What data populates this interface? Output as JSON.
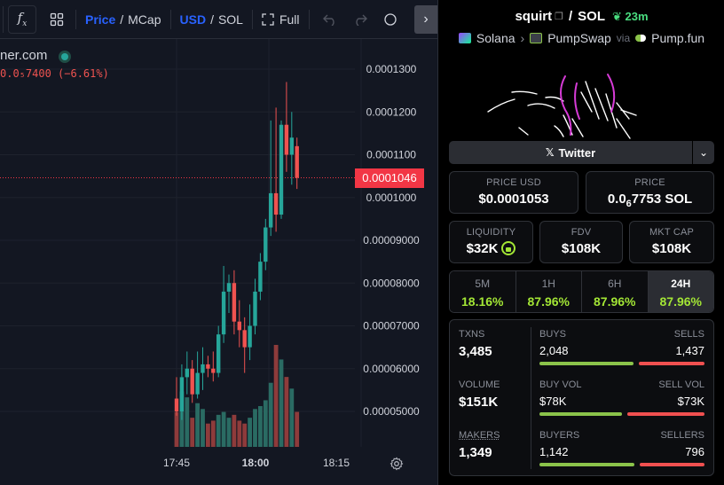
{
  "toolbar": {
    "price_label": "Price",
    "mcap_label": "MCap",
    "usd_label": "USD",
    "sol_label": "SOL",
    "full_label": "Full",
    "slash": "/"
  },
  "chart": {
    "pair_partial": "ner.com",
    "ohlc_partial": "0.0₅7400 (−6.61%)",
    "current_price": "0.0001046",
    "y_ticks": [
      "0.0001300",
      "0.0001200",
      "0.0001100",
      "0.0001000",
      "0.00009000",
      "0.00008000",
      "0.00007000",
      "0.00006000",
      "0.00005000"
    ],
    "x_ticks": [
      "17:45",
      "18:00",
      "18:15"
    ],
    "colors": {
      "up": "#26a69a",
      "down": "#ef5350",
      "tag": "#f23645"
    }
  },
  "chart_data": {
    "type": "candlestick",
    "ylim": [
      4.5e-05,
      0.000133
    ],
    "candles": [
      [
        5.3e-05,
        5.8e-05,
        4.9e-05,
        5e-05
      ],
      [
        5e-05,
        6.1e-05,
        4.8e-05,
        5.8e-05
      ],
      [
        5.8e-05,
        6.4e-05,
        5.4e-05,
        6e-05
      ],
      [
        6e-05,
        6.2e-05,
        5.2e-05,
        5.4e-05
      ],
      [
        5.4e-05,
        6.4e-05,
        5.3e-05,
        5.9e-05
      ],
      [
        5.9e-05,
        6.5e-05,
        5.5e-05,
        6.1e-05
      ],
      [
        6.1e-05,
        6.3e-05,
        5.8e-05,
        6e-05
      ],
      [
        6e-05,
        6.4e-05,
        5.7e-05,
        5.9e-05
      ],
      [
        5.9e-05,
        7e-05,
        5.8e-05,
        6.8e-05
      ],
      [
        6.8e-05,
        8.4e-05,
        6.6e-05,
        7.8e-05
      ],
      [
        7.8e-05,
        8.2e-05,
        7.3e-05,
        8e-05
      ],
      [
        8e-05,
        8.3e-05,
        6.8e-05,
        7.1e-05
      ],
      [
        7.1e-05,
        7.6e-05,
        6.5e-05,
        6.9e-05
      ],
      [
        6.9e-05,
        7.2e-05,
        5.9e-05,
        6.5e-05
      ],
      [
        6.5e-05,
        7.5e-05,
        6.2e-05,
        7e-05
      ],
      [
        7e-05,
        8.1e-05,
        6.8e-05,
        7.8e-05
      ],
      [
        7.8e-05,
        8.7e-05,
        7.6e-05,
        8.5e-05
      ],
      [
        8.5e-05,
        9.5e-05,
        8.3e-05,
        9.3e-05
      ],
      [
        9.3e-05,
        0.000118,
        9.1e-05,
        0.000101
      ],
      [
        0.000101,
        0.000121,
        9.2e-05,
        9.6e-05
      ],
      [
        9.6e-05,
        0.000118,
        9.5e-05,
        0.000117
      ],
      [
        0.000117,
        0.000127,
        0.000106,
        0.00011
      ],
      [
        0.00011,
        0.00012,
        0.000103,
        0.000114
      ],
      [
        0.000112,
        0.000114,
        0.000102,
        0.0001046
      ]
    ],
    "volumes": [
      12,
      19,
      17,
      10,
      15,
      13,
      8,
      9,
      11,
      12,
      10,
      11,
      9,
      8,
      10,
      13,
      14,
      16,
      22,
      35,
      30,
      24,
      20,
      12
    ],
    "volume_up": [
      false,
      true,
      true,
      false,
      true,
      true,
      false,
      false,
      true,
      true,
      true,
      false,
      false,
      false,
      true,
      true,
      true,
      true,
      true,
      false,
      true,
      false,
      true,
      false
    ]
  },
  "panel": {
    "token": "squirt",
    "quote": "SOL",
    "slash": "/",
    "age": "23m",
    "chain": "Solana",
    "dex": "PumpSwap",
    "via": "via",
    "launchpad": "Pump.fun",
    "twitter_label": "Twitter",
    "price_usd_label": "PRICE USD",
    "price_usd_value": "$0.0001053",
    "price_label": "PRICE",
    "price_value_prefix": "0.0",
    "price_value_sub": "6",
    "price_value_suffix": "7753 SOL",
    "liquidity_label": "LIQUIDITY",
    "liquidity_value": "$32K",
    "fdv_label": "FDV",
    "fdv_value": "$108K",
    "mcap_label": "MKT CAP",
    "mcap_value": "$108K",
    "timeframes": [
      {
        "name": "5M",
        "value": "18.16%"
      },
      {
        "name": "1H",
        "value": "87.96%"
      },
      {
        "name": "6H",
        "value": "87.96%"
      },
      {
        "name": "24H",
        "value": "87.96%"
      }
    ],
    "txns_label": "TXNS",
    "txns_value": "3,485",
    "buys_label": "BUYS",
    "buys_value": "2,048",
    "sells_label": "SELLS",
    "sells_value": "1,437",
    "buys_ratio": 0.588,
    "volume_label": "VOLUME",
    "volume_value": "$151K",
    "buy_vol_label": "BUY VOL",
    "buy_vol_value": "$78K",
    "sell_vol_label": "SELL VOL",
    "sell_vol_value": "$73K",
    "buy_vol_ratio": 0.517,
    "makers_label": "MAKERS",
    "makers_value": "1,349",
    "buyers_label": "BUYERS",
    "buyers_value": "1,142",
    "sellers_label": "SELLERS",
    "sellers_value": "796",
    "buyers_ratio": 0.589
  }
}
